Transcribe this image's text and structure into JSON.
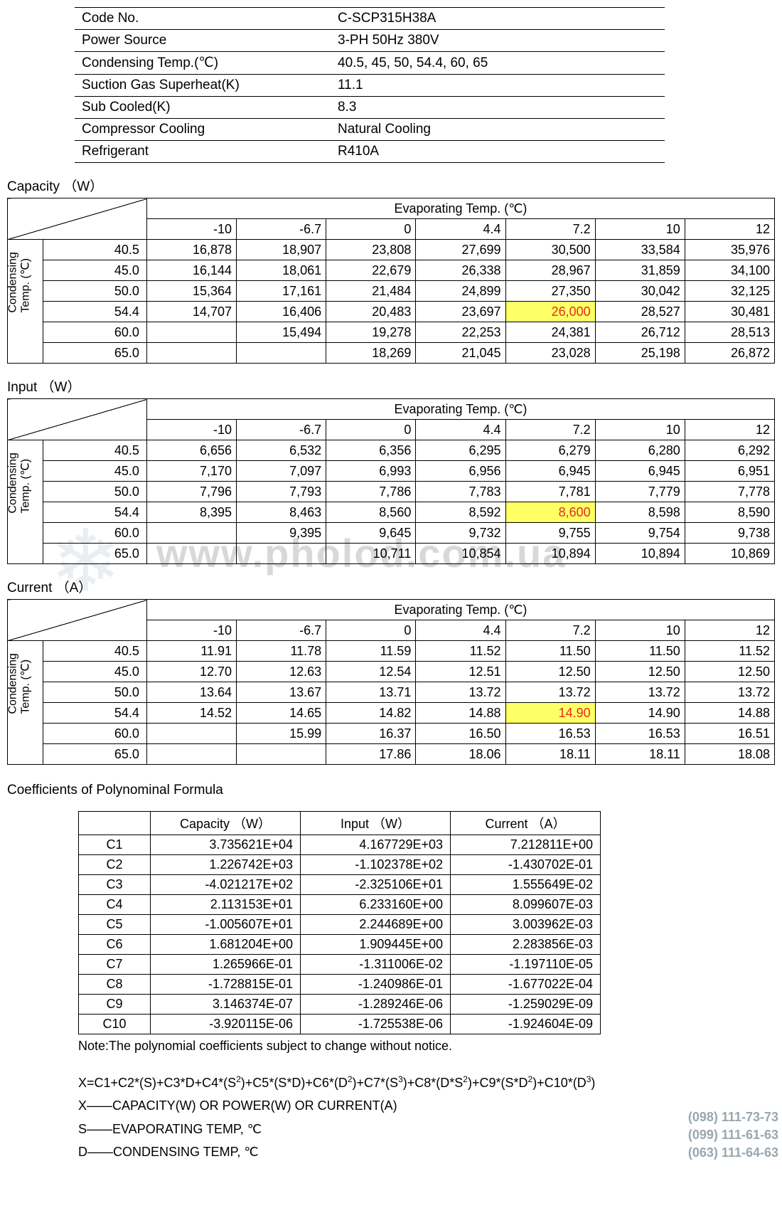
{
  "spec": {
    "rows": [
      {
        "label": "Code No.",
        "value": "C-SCP315H38A"
      },
      {
        "label": "Power Source",
        "value": "3-PH  50Hz  380V"
      },
      {
        "label": "Condensing Temp.(℃)",
        "value": "40.5, 45, 50, 54.4, 60, 65"
      },
      {
        "label": "Suction Gas Superheat(K)",
        "value": "11.1"
      },
      {
        "label": "Sub Cooled(K)",
        "value": "8.3"
      },
      {
        "label": "Compressor Cooling",
        "value": "Natural Cooling"
      },
      {
        "label": "Refrigerant",
        "value": "R410A"
      }
    ]
  },
  "evap_label": "Evaporating Temp. (℃)",
  "cond_label": "Condensing\nTemp. (℃)",
  "evap_temps": [
    "-10",
    "-6.7",
    "0",
    "4.4",
    "7.2",
    "10",
    "12"
  ],
  "cond_temps": [
    "40.5",
    "45.0",
    "50.0",
    "54.4",
    "60.0",
    "65.0"
  ],
  "tables": {
    "capacity": {
      "title": "Capacity （W）",
      "rows": [
        [
          "16,878",
          "18,907",
          "23,808",
          "27,699",
          "30,500",
          "33,584",
          "35,976"
        ],
        [
          "16,144",
          "18,061",
          "22,679",
          "26,338",
          "28,967",
          "31,859",
          "34,100"
        ],
        [
          "15,364",
          "17,161",
          "21,484",
          "24,899",
          "27,350",
          "30,042",
          "32,125"
        ],
        [
          "14,707",
          "16,406",
          "20,483",
          "23,697",
          "26,000",
          "28,527",
          "30,481"
        ],
        [
          "",
          "15,494",
          "19,278",
          "22,253",
          "24,381",
          "26,712",
          "28,513"
        ],
        [
          "",
          "",
          "18,269",
          "21,045",
          "23,028",
          "25,198",
          "26,872"
        ]
      ],
      "highlight": {
        "r": 3,
        "c": 4
      }
    },
    "input": {
      "title": "Input （W）",
      "rows": [
        [
          "6,656",
          "6,532",
          "6,356",
          "6,295",
          "6,279",
          "6,280",
          "6,292"
        ],
        [
          "7,170",
          "7,097",
          "6,993",
          "6,956",
          "6,945",
          "6,945",
          "6,951"
        ],
        [
          "7,796",
          "7,793",
          "7,786",
          "7,783",
          "7,781",
          "7,779",
          "7,778"
        ],
        [
          "8,395",
          "8,463",
          "8,560",
          "8,592",
          "8,600",
          "8,598",
          "8,590"
        ],
        [
          "",
          "9,395",
          "9,645",
          "9,732",
          "9,755",
          "9,754",
          "9,738"
        ],
        [
          "",
          "",
          "10,711",
          "10,854",
          "10,894",
          "10,894",
          "10,869"
        ]
      ],
      "highlight": {
        "r": 3,
        "c": 4
      }
    },
    "current": {
      "title": "Current （A）",
      "rows": [
        [
          "11.91",
          "11.78",
          "11.59",
          "11.52",
          "11.50",
          "11.50",
          "11.52"
        ],
        [
          "12.70",
          "12.63",
          "12.54",
          "12.51",
          "12.50",
          "12.50",
          "12.50"
        ],
        [
          "13.64",
          "13.67",
          "13.71",
          "13.72",
          "13.72",
          "13.72",
          "13.72"
        ],
        [
          "14.52",
          "14.65",
          "14.82",
          "14.88",
          "14.90",
          "14.90",
          "14.88"
        ],
        [
          "",
          "15.99",
          "16.37",
          "16.50",
          "16.53",
          "16.53",
          "16.51"
        ],
        [
          "",
          "",
          "17.86",
          "18.06",
          "18.11",
          "18.11",
          "18.08"
        ]
      ],
      "highlight": {
        "r": 3,
        "c": 4
      }
    }
  },
  "coef": {
    "title": "Coefficients of Polynominal Formula",
    "headers": [
      "Capacity （W）",
      "Input （W）",
      "Current （A）"
    ],
    "rows": [
      {
        "k": "C1",
        "v": [
          "3.735621E+04",
          "4.167729E+03",
          "7.212811E+00"
        ]
      },
      {
        "k": "C2",
        "v": [
          "1.226742E+03",
          "-1.102378E+02",
          "-1.430702E-01"
        ]
      },
      {
        "k": "C3",
        "v": [
          "-4.021217E+02",
          "-2.325106E+01",
          "1.555649E-02"
        ]
      },
      {
        "k": "C4",
        "v": [
          "2.113153E+01",
          "6.233160E+00",
          "8.099607E-03"
        ]
      },
      {
        "k": "C5",
        "v": [
          "-1.005607E+01",
          "2.244689E+00",
          "3.003962E-03"
        ]
      },
      {
        "k": "C6",
        "v": [
          "1.681204E+00",
          "1.909445E+00",
          "2.283856E-03"
        ]
      },
      {
        "k": "C7",
        "v": [
          "1.265966E-01",
          "-1.311006E-02",
          "-1.197110E-05"
        ]
      },
      {
        "k": "C8",
        "v": [
          "-1.728815E-01",
          "-1.240986E-01",
          "-1.677022E-04"
        ]
      },
      {
        "k": "C9",
        "v": [
          "3.146374E-07",
          "-1.289246E-06",
          "-1.259029E-09"
        ]
      },
      {
        "k": "C10",
        "v": [
          "-3.920115E-06",
          "-1.725538E-06",
          "-1.924604E-09"
        ]
      }
    ],
    "note": "Note:The  polynomial coefficients  subject to  change without notice."
  },
  "formula": {
    "eq": "X=C1+C2*(S)+C3*D+C4*(S²)+C5*(S*D)+C6*(D²)+C7*(S³)+C8*(D*S²)+C9*(S*D²)+C10*(D³)",
    "lines": [
      "X——CAPACITY(W)  OR  POWER(W)  OR  CURRENT(A)",
      "S——EVAPORATING TEMP, ℃",
      "D——CONDENSING TEMP,  ℃"
    ]
  },
  "watermark": {
    "url": "www.pholod.com.ua"
  },
  "phones": [
    "(098) 111-73-73",
    "(099) 111-61-63",
    "(063) 111-64-63"
  ]
}
